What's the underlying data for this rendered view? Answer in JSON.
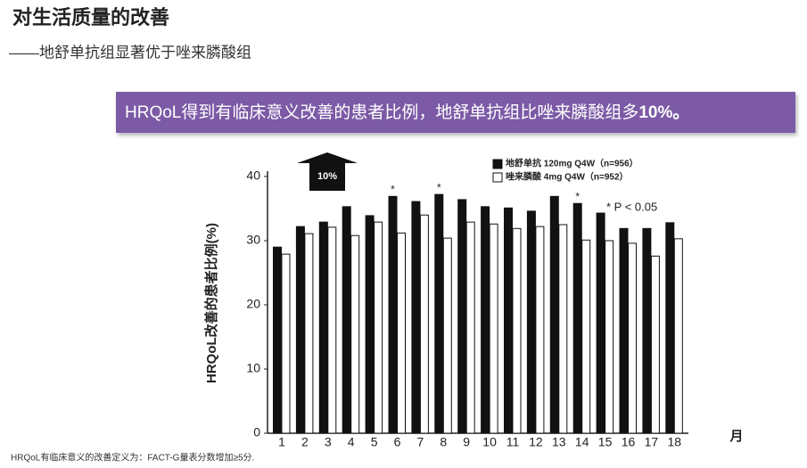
{
  "header": {
    "title": "对生活质量的改善",
    "subtitle": "——地舒单抗组显著优于唑来膦酸组"
  },
  "banner": {
    "text": "HRQoL得到有临床意义改善的患者比例，地舒单抗组比唑来膦酸组多",
    "bold": "10%。"
  },
  "chart_data": {
    "type": "bar",
    "arrow_label": "10%",
    "y_label": "HRQoL改善的患者比例(%)",
    "x_label": "月",
    "annotation": "* P < 0.05",
    "categories": [
      "1",
      "2",
      "3",
      "4",
      "5",
      "6",
      "7",
      "8",
      "9",
      "10",
      "11",
      "12",
      "13",
      "14",
      "15",
      "16",
      "17",
      "18"
    ],
    "series": [
      {
        "name": "地舒单抗 120mg Q4W（n=956）",
        "color": "#111111",
        "values": [
          29.0,
          32.2,
          32.9,
          35.3,
          33.9,
          36.9,
          36.1,
          37.2,
          36.4,
          35.3,
          35.1,
          34.6,
          36.9,
          35.8,
          34.3,
          31.9,
          31.9,
          32.8
        ]
      },
      {
        "name": "唑来膦酸 4mg Q4W（n=952）",
        "color": "#ffffff",
        "values": [
          27.9,
          31.1,
          32.1,
          30.8,
          32.9,
          31.2,
          34.0,
          30.4,
          32.9,
          32.6,
          31.9,
          32.2,
          32.5,
          30.1,
          30.0,
          29.6,
          27.6,
          30.3
        ]
      }
    ],
    "markers": [
      null,
      null,
      null,
      null,
      null,
      "*",
      null,
      "*",
      null,
      null,
      null,
      null,
      null,
      "*",
      null,
      null,
      null,
      null
    ],
    "ylim": [
      0,
      40
    ],
    "yticks": [
      0,
      10,
      20,
      30,
      40
    ],
    "grid": false
  },
  "footnote": "HRQoL有临床意义的改善定义为：FACT-G量表分数增加≥5分."
}
